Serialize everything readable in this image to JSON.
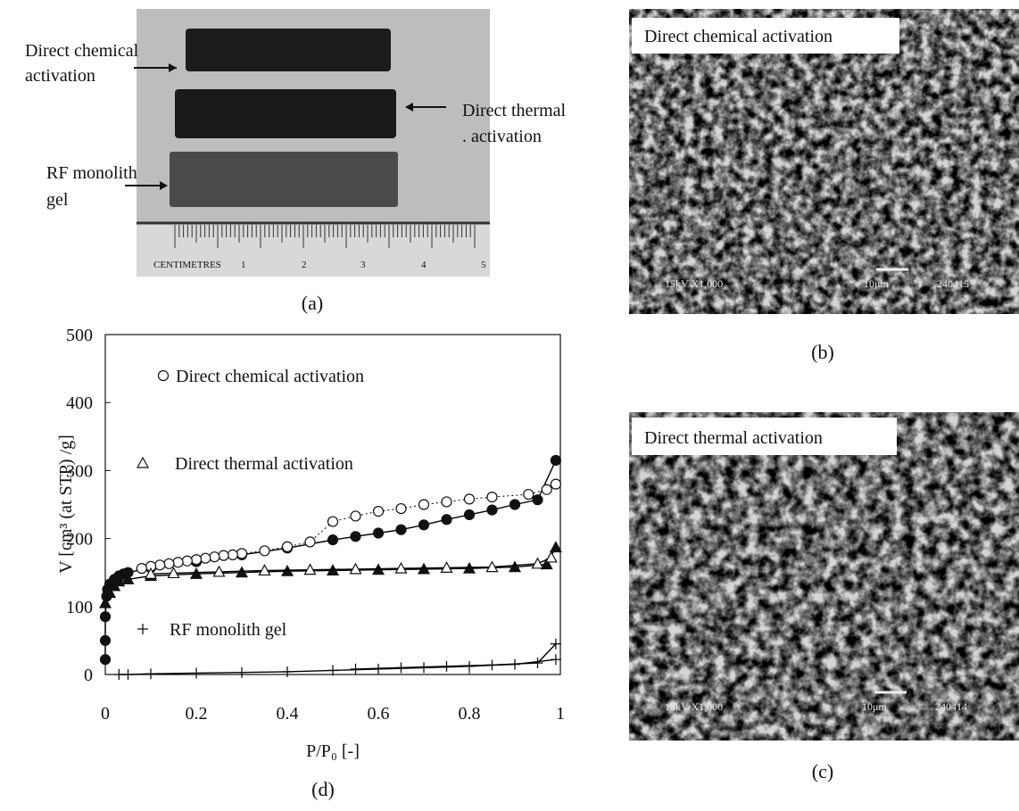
{
  "panel_a": {
    "caption": "(a)",
    "arrow_labels": [
      {
        "lines": [
          "Direct chemical",
          "activation"
        ]
      },
      {
        "lines": [
          "Direct thermal",
          ". activation"
        ]
      },
      {
        "lines": [
          "RF monolith",
          "gel"
        ]
      }
    ],
    "ruler": {
      "label": "CENTIMETRES",
      "numbers": [
        "1",
        "2",
        "3",
        "4",
        "5"
      ]
    }
  },
  "panel_b": {
    "caption": "(b)",
    "label": "Direct chemical activation",
    "sem_info": "15kV X1,000",
    "scale": "10μm",
    "code": "240415"
  },
  "panel_c": {
    "caption": "(c)",
    "label": "Direct thermal activation",
    "sem_info": "15kV X1,000",
    "scale": "10μm",
    "code": "240414"
  },
  "panel_d": {
    "caption": "(d)"
  },
  "chart_data": {
    "type": "scatter",
    "xlabel": "P/P₀ [-]",
    "ylabel": "V [cm³ (at STP) /g]",
    "xlim": [
      0,
      1
    ],
    "ylim": [
      0,
      500
    ],
    "xticks": [
      0,
      0.2,
      0.4,
      0.6,
      0.8,
      1
    ],
    "yticks": [
      0,
      100,
      200,
      300,
      400,
      500
    ],
    "series": [
      {
        "name": "Direct chemical activation",
        "marker": "circle",
        "color": "#000000",
        "adsorption": {
          "x": [
            0.0,
            0.0,
            0.0,
            0.003,
            0.005,
            0.01,
            0.02,
            0.03,
            0.04,
            0.05,
            0.1,
            0.2,
            0.3,
            0.4,
            0.5,
            0.55,
            0.6,
            0.65,
            0.7,
            0.75,
            0.8,
            0.85,
            0.9,
            0.95,
            0.99
          ],
          "values": [
            22,
            50,
            85,
            115,
            125,
            133,
            140,
            145,
            148,
            150,
            157,
            166,
            176,
            186,
            198,
            203,
            208,
            213,
            220,
            228,
            235,
            242,
            250,
            257,
            315
          ]
        },
        "desorption": {
          "x": [
            0.99,
            0.97,
            0.93,
            0.85,
            0.8,
            0.75,
            0.7,
            0.65,
            0.6,
            0.55,
            0.5,
            0.45,
            0.4,
            0.35,
            0.3,
            0.28,
            0.26,
            0.24,
            0.22,
            0.2,
            0.18,
            0.16,
            0.14,
            0.12,
            0.1,
            0.08
          ],
          "values": [
            280,
            272,
            265,
            261,
            258,
            254,
            250,
            244,
            240,
            233,
            225,
            195,
            188,
            182,
            178,
            176,
            175,
            173,
            171,
            169,
            167,
            165,
            163,
            161,
            159,
            156
          ]
        }
      },
      {
        "name": "Direct thermal activation",
        "marker": "triangle",
        "color": "#000000",
        "adsorption": {
          "x": [
            0.0,
            0.01,
            0.02,
            0.03,
            0.05,
            0.1,
            0.2,
            0.3,
            0.4,
            0.5,
            0.6,
            0.7,
            0.8,
            0.9,
            0.97,
            0.99
          ],
          "values": [
            105,
            120,
            130,
            137,
            140,
            145,
            148,
            150,
            152,
            153,
            154,
            155,
            156,
            158,
            162,
            187
          ]
        },
        "desorption": {
          "x": [
            0.98,
            0.95,
            0.85,
            0.75,
            0.65,
            0.55,
            0.45,
            0.35,
            0.25,
            0.15,
            0.1
          ],
          "values": [
            172,
            163,
            158,
            157,
            156,
            155,
            154,
            153,
            151,
            149,
            148
          ]
        }
      },
      {
        "name": "RF monolith gel",
        "marker": "plus",
        "color": "#000000",
        "adsorption": {
          "x": [
            0.03,
            0.05,
            0.1,
            0.2,
            0.3,
            0.4,
            0.5,
            0.6,
            0.7,
            0.8,
            0.9,
            0.99
          ],
          "values": [
            0,
            0,
            1,
            2,
            3,
            4,
            6,
            8,
            10,
            12,
            15,
            22
          ]
        },
        "desorption": {
          "x": [
            0.99,
            0.95,
            0.85,
            0.75,
            0.65,
            0.55
          ],
          "values": [
            45,
            17,
            14,
            12,
            10,
            8
          ]
        }
      }
    ]
  }
}
